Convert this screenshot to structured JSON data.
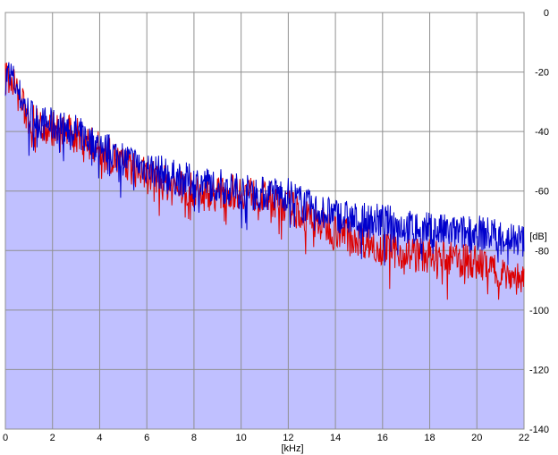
{
  "chart_data": {
    "type": "area",
    "x_unit_label": "[kHz]",
    "y_unit_label": "[dB]",
    "xlim": [
      0,
      22
    ],
    "ylim": [
      -140,
      0
    ],
    "x_ticks": [
      "0",
      "2",
      "4",
      "6",
      "8",
      "10",
      "12",
      "14",
      "16",
      "18",
      "20",
      "22"
    ],
    "y_ticks": [
      "0",
      "-20",
      "-40",
      "-60",
      "-80",
      "-100",
      "-120",
      "-140"
    ],
    "grid": true,
    "colors": {
      "background": "#ffffff",
      "grid": "#909090",
      "fill": "#c0c0ff"
    },
    "series": [
      {
        "color": "#0000cc",
        "x": [
          0,
          0.2,
          0.5,
          1,
          1.5,
          2,
          3,
          4,
          5,
          6,
          7,
          8,
          9,
          10,
          11,
          12,
          13,
          14,
          15,
          16,
          17,
          18,
          19,
          20,
          21,
          22
        ],
        "y": [
          -22,
          -20,
          -26,
          -34,
          -37,
          -38,
          -40,
          -45,
          -49,
          -52,
          -55,
          -57,
          -58,
          -60,
          -61,
          -61,
          -66,
          -68,
          -70,
          -70,
          -72,
          -73,
          -74,
          -74,
          -75,
          -77
        ]
      },
      {
        "color": "#dd0000",
        "x": [
          0,
          0.2,
          0.5,
          1,
          1.5,
          2,
          3,
          4,
          5,
          6,
          7,
          8,
          9,
          10,
          11,
          12,
          13,
          14,
          15,
          16,
          17,
          18,
          19,
          20,
          21,
          22
        ],
        "y": [
          -22,
          -21,
          -27,
          -36,
          -38,
          -39,
          -41,
          -46,
          -51,
          -55,
          -58,
          -60,
          -61,
          -60,
          -62,
          -65,
          -70,
          -73,
          -76,
          -79,
          -81,
          -82,
          -83,
          -84,
          -87,
          -90
        ]
      }
    ]
  }
}
